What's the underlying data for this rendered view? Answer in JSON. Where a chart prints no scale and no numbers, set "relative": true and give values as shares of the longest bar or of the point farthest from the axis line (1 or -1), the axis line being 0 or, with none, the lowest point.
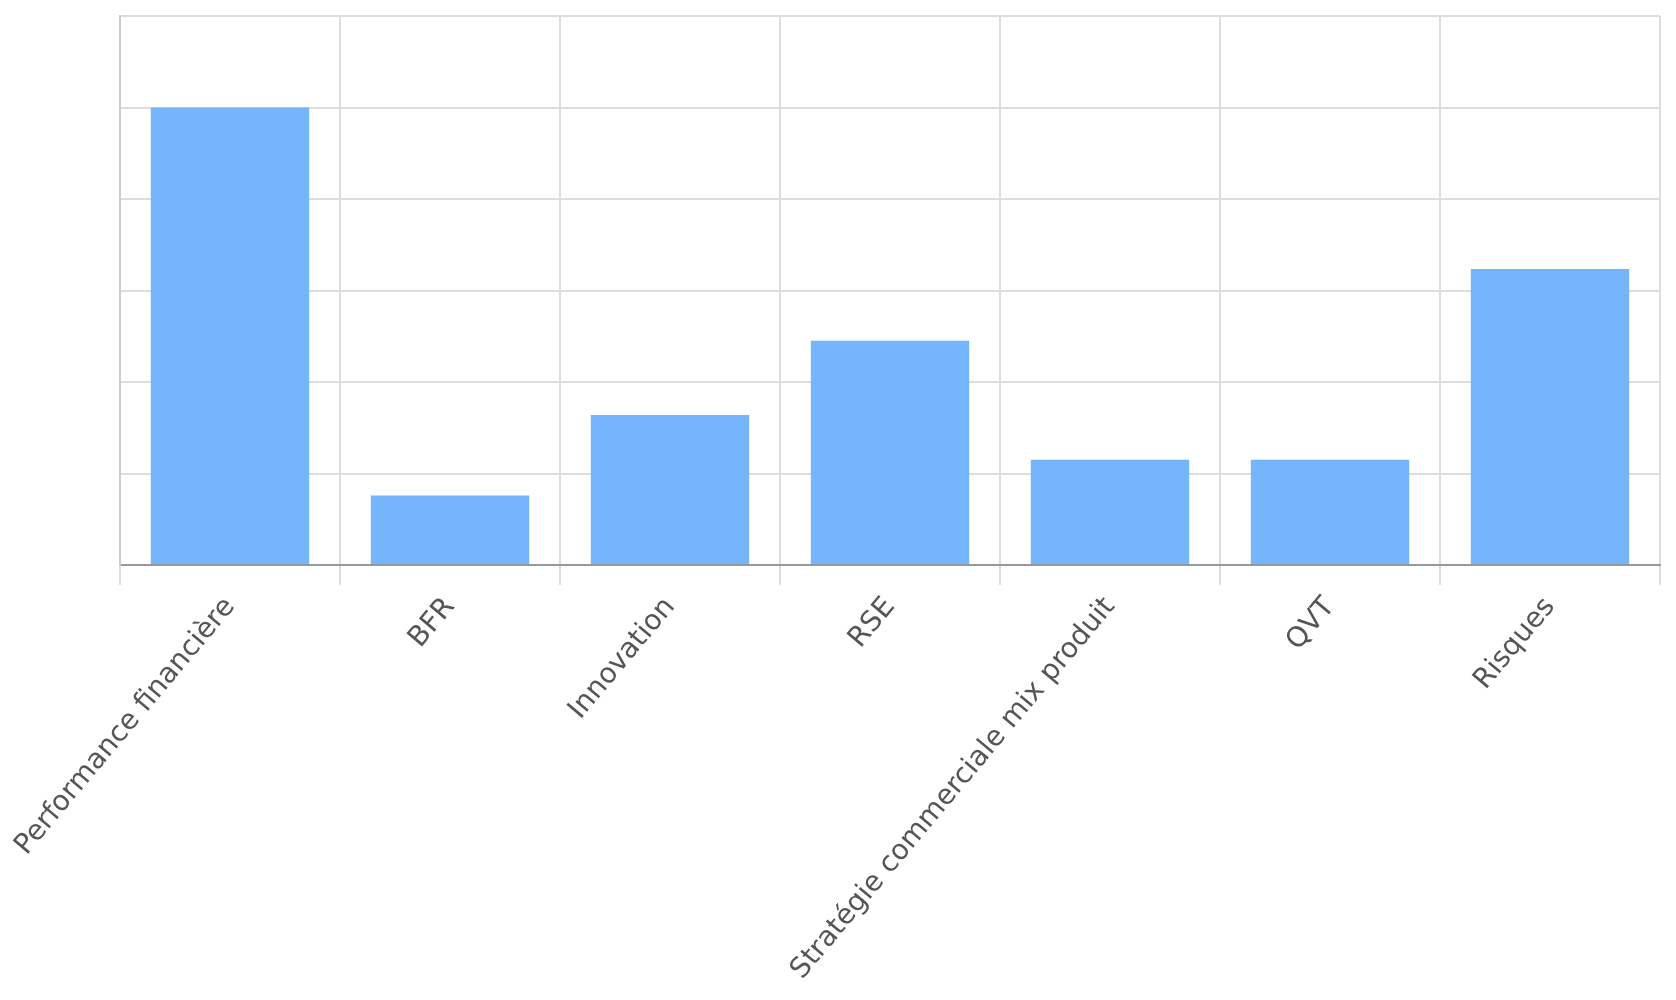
{
  "chart_data": {
    "type": "bar",
    "relative": true,
    "categories": [
      "Performance financière",
      "BFR",
      "Innovation",
      "RSE",
      "Stratégie commerciale mix produit",
      "QVT",
      "Risques"
    ],
    "values": [
      1,
      0.152,
      0.328,
      0.49,
      0.23,
      0.23,
      0.647
    ],
    "color": "#75b5fd",
    "grid": true,
    "legend": false
  }
}
